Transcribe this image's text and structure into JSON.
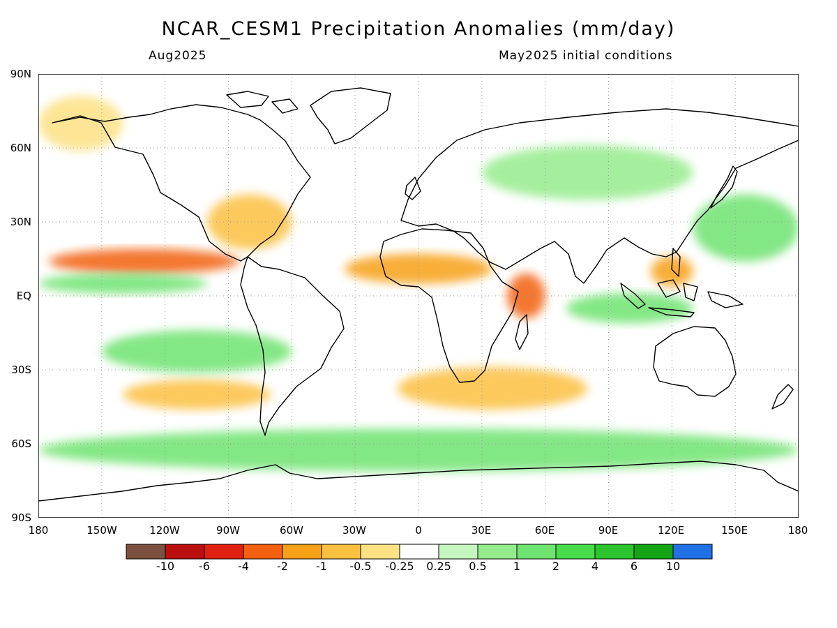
{
  "title": "NCAR_CESM1 Precipitation Anomalies (mm/day)",
  "subtitle_left": "Aug2025",
  "subtitle_right": "May2025 initial conditions",
  "lat_labels": [
    "90N",
    "60N",
    "30N",
    "EQ",
    "30S",
    "60S",
    "90S"
  ],
  "lon_labels": [
    "180",
    "150W",
    "120W",
    "90W",
    "60W",
    "30W",
    "0",
    "30E",
    "60E",
    "90E",
    "120E",
    "150E",
    "180"
  ],
  "colorbar": {
    "colors": [
      "#7b5040",
      "#bb0f0f",
      "#e02010",
      "#f26010",
      "#f7a018",
      "#fbc040",
      "#fde183",
      "#ffffff",
      "#c6f7c0",
      "#95ec8c",
      "#6ee370",
      "#48db4a",
      "#2cc42e",
      "#14a414",
      "#2070e6"
    ],
    "labels": [
      "-10",
      "-6",
      "-4",
      "-2",
      "-1",
      "-0.5",
      "-0.25",
      "0.25",
      "0.5",
      "1",
      "2",
      "4",
      "6",
      "10"
    ]
  },
  "chart_data": {
    "type": "heatmap",
    "title": "NCAR_CESM1 Precipitation Anomalies (mm/day)",
    "variable": "Precipitation Anomalies",
    "units": "mm/day",
    "target_month": "Aug2025",
    "initial_conditions": "May2025 initial conditions",
    "x_range": [
      -180,
      180
    ],
    "y_range": [
      -90,
      90
    ],
    "contour_levels": [
      -10,
      -6,
      -4,
      -2,
      -1,
      -0.5,
      -0.25,
      0.25,
      0.5,
      1,
      2,
      4,
      6,
      10
    ]
  },
  "anomaly_regions": [
    {
      "region": "eastern tropical Pacific ITCZ",
      "lon": [
        -175,
        -85
      ],
      "lat": [
        10,
        18
      ],
      "value": -3
    },
    {
      "region": "equatorial central Pacific",
      "lon": [
        -180,
        -100
      ],
      "lat": [
        2,
        8
      ],
      "value": 1.5
    },
    {
      "region": "tropical Atlantic / Sahel",
      "lon": [
        -35,
        35
      ],
      "lat": [
        6,
        16
      ],
      "value": -2
    },
    {
      "region": "western Indian Ocean",
      "lon": [
        42,
        60
      ],
      "lat": [
        -8,
        8
      ],
      "value": -3
    },
    {
      "region": "eastern Indian Ocean / Indonesia",
      "lon": [
        70,
        130
      ],
      "lat": [
        -10,
        0
      ],
      "value": 1.5
    },
    {
      "region": "western Pacific / Philippines",
      "lon": [
        110,
        130
      ],
      "lat": [
        5,
        15
      ],
      "value": -1.5
    },
    {
      "region": "subtropical NW Pacific",
      "lon": [
        130,
        180
      ],
      "lat": [
        15,
        40
      ],
      "value": 1
    },
    {
      "region": "southern Pacific storm track",
      "lon": [
        -140,
        -70
      ],
      "lat": [
        -45,
        -35
      ],
      "value": -1
    },
    {
      "region": "southern Atlantic / Indian storm track",
      "lon": [
        -10,
        80
      ],
      "lat": [
        -45,
        -30
      ],
      "value": -1
    },
    {
      "region": "Southern Ocean",
      "lon": [
        -180,
        180
      ],
      "lat": [
        -70,
        -55
      ],
      "value": 1
    },
    {
      "region": "Southern Pacific subtropics",
      "lon": [
        -150,
        -60
      ],
      "lat": [
        -30,
        -15
      ],
      "value": 1
    },
    {
      "region": "eastern North America",
      "lon": [
        -100,
        -60
      ],
      "lat": [
        20,
        40
      ],
      "value": -1
    },
    {
      "region": "Arctic / North Pacific",
      "lon": [
        -180,
        -140
      ],
      "lat": [
        60,
        80
      ],
      "value": -0.5
    },
    {
      "region": "Eurasia",
      "lon": [
        30,
        130
      ],
      "lat": [
        40,
        60
      ],
      "value": 0.5
    }
  ]
}
